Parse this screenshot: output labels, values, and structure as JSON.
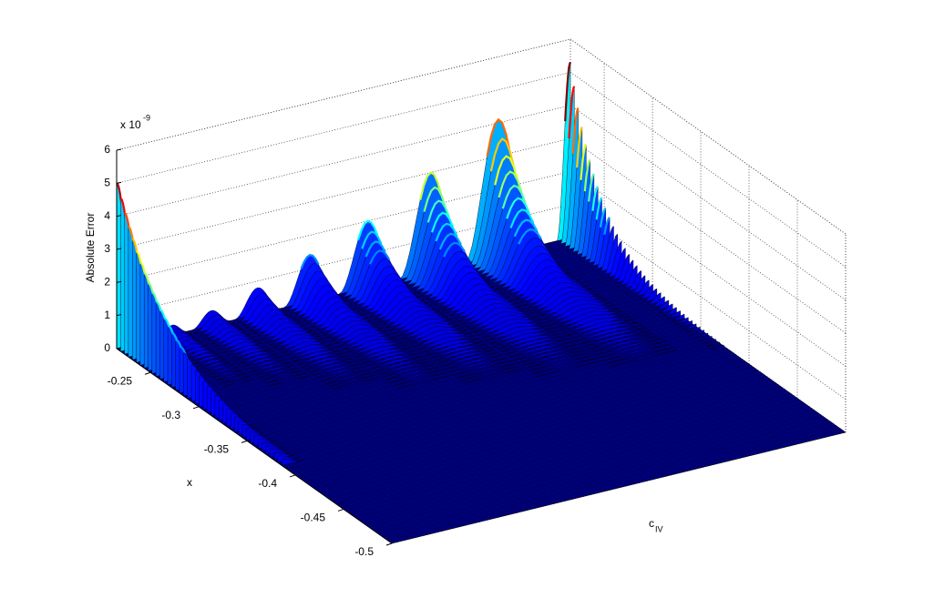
{
  "chart_data": {
    "type": "surface",
    "zlabel": "Absolute Error",
    "zscale": {
      "base": "x 10",
      "exponent": "-9"
    },
    "xlabel": "x",
    "ylabel": {
      "text": "c",
      "subscript": "IV"
    },
    "zlim": [
      0,
      6
    ],
    "zticks": [
      0,
      1,
      2,
      3,
      4,
      5,
      6
    ],
    "xlim": [
      -0.5,
      -0.215
    ],
    "xticks": [
      -0.25,
      -0.3,
      -0.35,
      -0.4,
      -0.45,
      -0.5
    ],
    "categories": [
      null,
      null,
      null,
      null,
      null,
      null,
      null,
      null,
      null,
      null
    ],
    "values": [
      5.0,
      0.2,
      0.3,
      0.45,
      0.8,
      1.4,
      2.0,
      3.0,
      4.1,
      5.3
    ],
    "colormap": "jet",
    "grid": true
  }
}
